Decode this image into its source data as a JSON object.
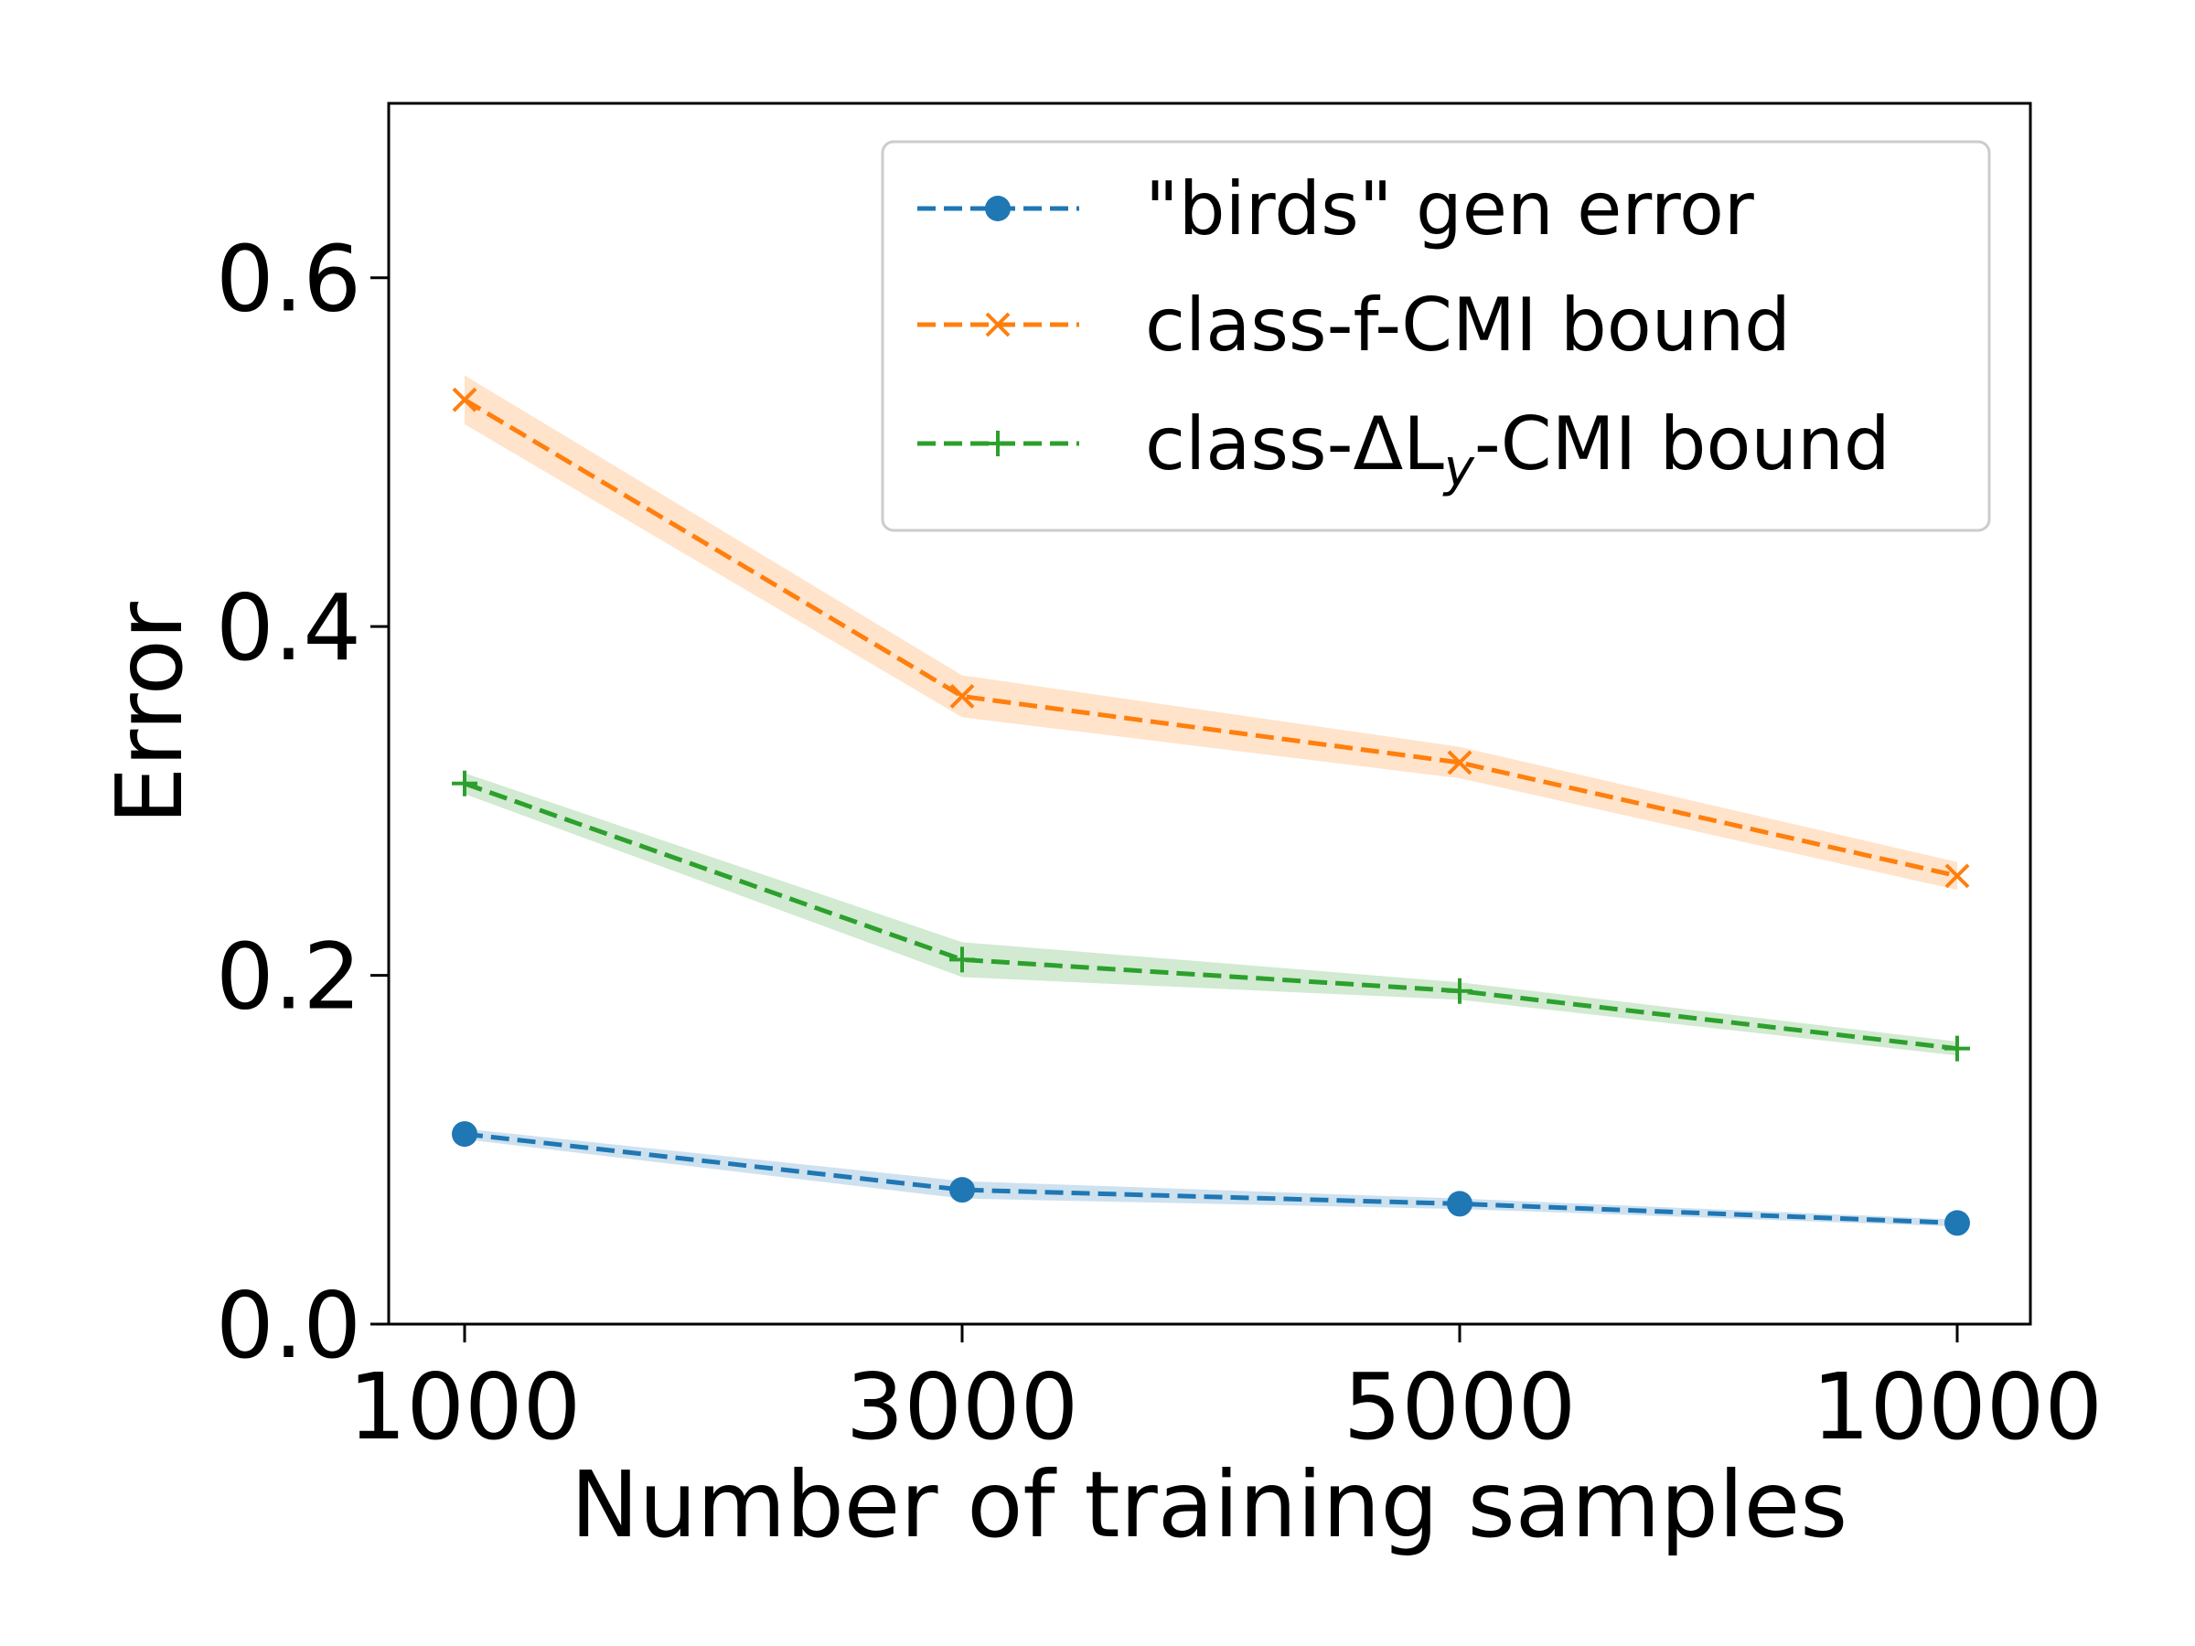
{
  "chart_data": {
    "type": "line",
    "title": "",
    "xlabel": "Number of training samples",
    "ylabel": "Error",
    "categories": [
      "1000",
      "3000",
      "5000",
      "10000"
    ],
    "ylim": [
      0,
      0.7
    ],
    "yticks": [
      0.0,
      0.2,
      0.4,
      0.6
    ],
    "ytick_labels": [
      "0.0",
      "0.2",
      "0.4",
      "0.6"
    ],
    "grid": false,
    "legend_position": "top-right",
    "series": [
      {
        "name": "\"birds\" gen error",
        "legend_label": "\"birds\" gen error",
        "values": [
          0.109,
          0.077,
          0.069,
          0.058
        ],
        "band": [
          0.003,
          0.005,
          0.003,
          0.002
        ],
        "color": "#1f77b4",
        "marker": "circle"
      },
      {
        "name": "class-f-CMI bound",
        "legend_label": "class-f-CMI bound",
        "values": [
          0.53,
          0.36,
          0.322,
          0.257
        ],
        "band": [
          0.014,
          0.012,
          0.009,
          0.008
        ],
        "color": "#ff7f0e",
        "marker": "x"
      },
      {
        "name": "class-ΔL_y-CMI bound",
        "legend_label": "class-ΔL",
        "legend_sub": "y",
        "legend_suffix": "-CMI bound",
        "values": [
          0.31,
          0.209,
          0.191,
          0.158
        ],
        "band": [
          0.006,
          0.01,
          0.005,
          0.004
        ],
        "color": "#2ca02c",
        "marker": "plus"
      }
    ]
  }
}
